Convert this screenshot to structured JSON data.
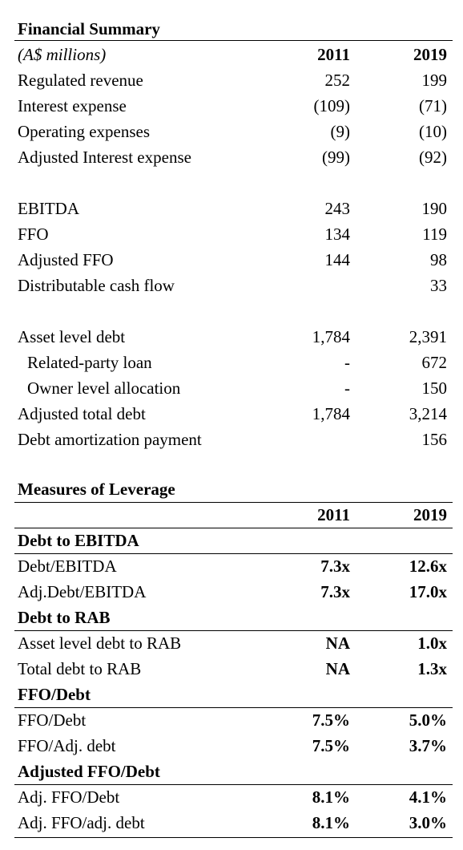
{
  "summary": {
    "title": "Financial Summary",
    "unit": "(A$ millions)",
    "columns": [
      "2011",
      "2019"
    ],
    "groups": [
      [
        {
          "label": "Regulated revenue",
          "values": [
            "252",
            "199"
          ]
        },
        {
          "label": "Interest expense",
          "values": [
            "(109)",
            "(71)"
          ]
        },
        {
          "label": "Operating expenses",
          "values": [
            "(9)",
            "(10)"
          ]
        },
        {
          "label": "Adjusted Interest expense",
          "values": [
            "(99)",
            "(92)"
          ]
        }
      ],
      [
        {
          "label": "EBITDA",
          "values": [
            "243",
            "190"
          ]
        },
        {
          "label": "FFO",
          "values": [
            "134",
            "119"
          ]
        },
        {
          "label": "Adjusted FFO",
          "values": [
            "144",
            "98"
          ]
        },
        {
          "label": "Distributable cash flow",
          "values": [
            null,
            "33"
          ]
        }
      ],
      [
        {
          "label": "Asset level debt",
          "values": [
            "1,784",
            "2,391"
          ]
        },
        {
          "label": "Related-party loan",
          "values": [
            "-",
            "672"
          ],
          "indent": true
        },
        {
          "label": "Owner level allocation",
          "values": [
            "-",
            "150"
          ],
          "indent": true
        },
        {
          "label": "Adjusted total debt",
          "values": [
            "1,784",
            "3,214"
          ]
        },
        {
          "label": "Debt amortization payment",
          "values": [
            null,
            "156"
          ]
        }
      ]
    ]
  },
  "leverage": {
    "title": "Measures of Leverage",
    "columns": [
      "2011",
      "2019"
    ],
    "sections": [
      {
        "heading": "Debt to EBITDA",
        "rows": [
          {
            "label": "Debt/EBITDA",
            "values": [
              "7.3x",
              "12.6x"
            ]
          },
          {
            "label": "Adj.Debt/EBITDA",
            "values": [
              "7.3x",
              "17.0x"
            ]
          }
        ]
      },
      {
        "heading": "Debt to RAB",
        "rows": [
          {
            "label": "Asset level debt to RAB",
            "values": [
              "NA",
              "1.0x"
            ]
          },
          {
            "label": "Total debt to RAB",
            "values": [
              "NA",
              "1.3x"
            ]
          }
        ]
      },
      {
        "heading": "FFO/Debt",
        "rows": [
          {
            "label": "FFO/Debt",
            "values": [
              "7.5%",
              "5.0%"
            ]
          },
          {
            "label": "FFO/Adj. debt",
            "values": [
              "7.5%",
              "3.7%"
            ]
          }
        ]
      },
      {
        "heading": "Adjusted FFO/Debt",
        "rows": [
          {
            "label": "Adj. FFO/Debt",
            "values": [
              "8.1%",
              "4.1%"
            ]
          },
          {
            "label": "Adj. FFO/adj. debt",
            "values": [
              "8.1%",
              "3.0%"
            ]
          }
        ]
      }
    ]
  }
}
